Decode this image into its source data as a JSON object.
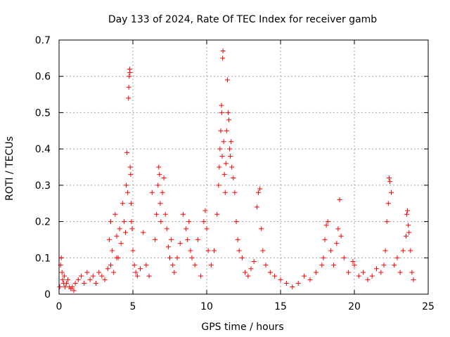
{
  "chart_data": {
    "type": "scatter",
    "title": "Day 133 of 2024, Rate Of TEC Index for receiver gamb",
    "xlabel": "GPS time / hours",
    "ylabel": "ROTI / TECUs",
    "xlim": [
      0,
      25
    ],
    "ylim": [
      0,
      0.7
    ],
    "xticks": [
      0,
      5,
      10,
      15,
      20,
      25
    ],
    "yticks": [
      0,
      0.1,
      0.2,
      0.3,
      0.4,
      0.5,
      0.6,
      0.7
    ],
    "xtick_labels": [
      "0",
      "5",
      "10",
      "15",
      "20",
      "25"
    ],
    "ytick_labels": [
      "0",
      "0.1",
      "0.2",
      "0.3",
      "0.4",
      "0.5",
      "0.6",
      "0.7"
    ],
    "grid": true,
    "marker": "+",
    "color": "#ff0000",
    "series": [
      {
        "name": "ROTI",
        "x": [
          0.05,
          0.1,
          0.15,
          0.2,
          0.25,
          0.3,
          0.35,
          0.4,
          0.5,
          0.6,
          0.7,
          0.8,
          0.9,
          1.0,
          1.1,
          1.3,
          1.5,
          1.7,
          1.9,
          2.1,
          2.3,
          2.5,
          2.7,
          2.9,
          3.1,
          3.3,
          3.5,
          3.7,
          3.9,
          3.4,
          3.5,
          3.6,
          3.8,
          3.9,
          4.0,
          4.1,
          4.2,
          4.3,
          4.4,
          4.5,
          4.55,
          4.6,
          4.65,
          4.7,
          4.72,
          4.75,
          4.78,
          4.8,
          4.82,
          4.85,
          4.88,
          4.9,
          4.95,
          5.0,
          5.1,
          5.2,
          5.3,
          5.5,
          5.7,
          5.9,
          6.1,
          6.3,
          6.5,
          6.6,
          6.7,
          6.75,
          6.8,
          6.85,
          6.9,
          7.0,
          7.1,
          7.2,
          7.3,
          7.4,
          7.5,
          7.6,
          7.7,
          7.8,
          8.0,
          8.2,
          8.4,
          8.6,
          8.7,
          8.8,
          8.9,
          9.0,
          9.2,
          9.4,
          9.6,
          9.8,
          9.9,
          10.0,
          10.1,
          10.3,
          10.5,
          10.7,
          10.8,
          10.85,
          10.9,
          10.95,
          11.0,
          11.02,
          11.05,
          11.08,
          11.1,
          11.15,
          11.2,
          11.25,
          11.3,
          11.35,
          11.4,
          11.45,
          11.5,
          11.55,
          11.6,
          11.65,
          11.7,
          11.8,
          11.9,
          12.0,
          12.1,
          12.2,
          12.4,
          12.6,
          12.8,
          13.0,
          13.2,
          13.4,
          13.5,
          13.6,
          13.7,
          13.8,
          14.0,
          14.3,
          14.6,
          15.0,
          15.4,
          15.8,
          16.2,
          16.6,
          17.0,
          17.4,
          17.8,
          17.9,
          18.0,
          18.1,
          18.2,
          18.4,
          18.6,
          18.8,
          18.9,
          19.0,
          19.1,
          19.3,
          19.6,
          19.9,
          20.0,
          20.3,
          20.6,
          20.9,
          21.2,
          21.5,
          21.8,
          22.0,
          22.1,
          22.2,
          22.3,
          22.35,
          22.4,
          22.5,
          22.7,
          22.9,
          23.1,
          23.3,
          23.5,
          23.55,
          23.6,
          23.65,
          23.7,
          23.8,
          23.9,
          24.0
        ],
        "y": [
          0.02,
          0.08,
          0.1,
          0.06,
          0.04,
          0.03,
          0.05,
          0.02,
          0.03,
          0.04,
          0.02,
          0.015,
          0.02,
          0.01,
          0.03,
          0.04,
          0.05,
          0.03,
          0.06,
          0.04,
          0.05,
          0.03,
          0.06,
          0.05,
          0.04,
          0.07,
          0.08,
          0.06,
          0.1,
          0.15,
          0.2,
          0.12,
          0.22,
          0.16,
          0.1,
          0.18,
          0.14,
          0.25,
          0.2,
          0.17,
          0.3,
          0.39,
          0.28,
          0.54,
          0.57,
          0.6,
          0.62,
          0.61,
          0.35,
          0.33,
          0.25,
          0.2,
          0.18,
          0.12,
          0.08,
          0.06,
          0.05,
          0.07,
          0.17,
          0.08,
          0.05,
          0.28,
          0.15,
          0.22,
          0.3,
          0.35,
          0.33,
          0.25,
          0.2,
          0.28,
          0.32,
          0.22,
          0.18,
          0.13,
          0.1,
          0.15,
          0.08,
          0.06,
          0.1,
          0.14,
          0.22,
          0.18,
          0.15,
          0.2,
          0.12,
          0.1,
          0.08,
          0.15,
          0.05,
          0.2,
          0.23,
          0.18,
          0.12,
          0.08,
          0.12,
          0.22,
          0.3,
          0.35,
          0.4,
          0.45,
          0.52,
          0.5,
          0.38,
          0.65,
          0.67,
          0.42,
          0.33,
          0.28,
          0.36,
          0.45,
          0.59,
          0.5,
          0.48,
          0.4,
          0.38,
          0.42,
          0.35,
          0.32,
          0.28,
          0.2,
          0.15,
          0.12,
          0.1,
          0.06,
          0.05,
          0.07,
          0.09,
          0.24,
          0.28,
          0.29,
          0.18,
          0.12,
          0.08,
          0.06,
          0.05,
          0.04,
          0.03,
          0.02,
          0.03,
          0.05,
          0.04,
          0.06,
          0.08,
          0.1,
          0.15,
          0.19,
          0.2,
          0.12,
          0.08,
          0.14,
          0.18,
          0.26,
          0.16,
          0.1,
          0.06,
          0.09,
          0.08,
          0.05,
          0.06,
          0.04,
          0.05,
          0.07,
          0.06,
          0.08,
          0.12,
          0.2,
          0.25,
          0.32,
          0.31,
          0.28,
          0.08,
          0.1,
          0.06,
          0.12,
          0.16,
          0.22,
          0.23,
          0.19,
          0.17,
          0.12,
          0.06,
          0.04
        ]
      }
    ]
  }
}
